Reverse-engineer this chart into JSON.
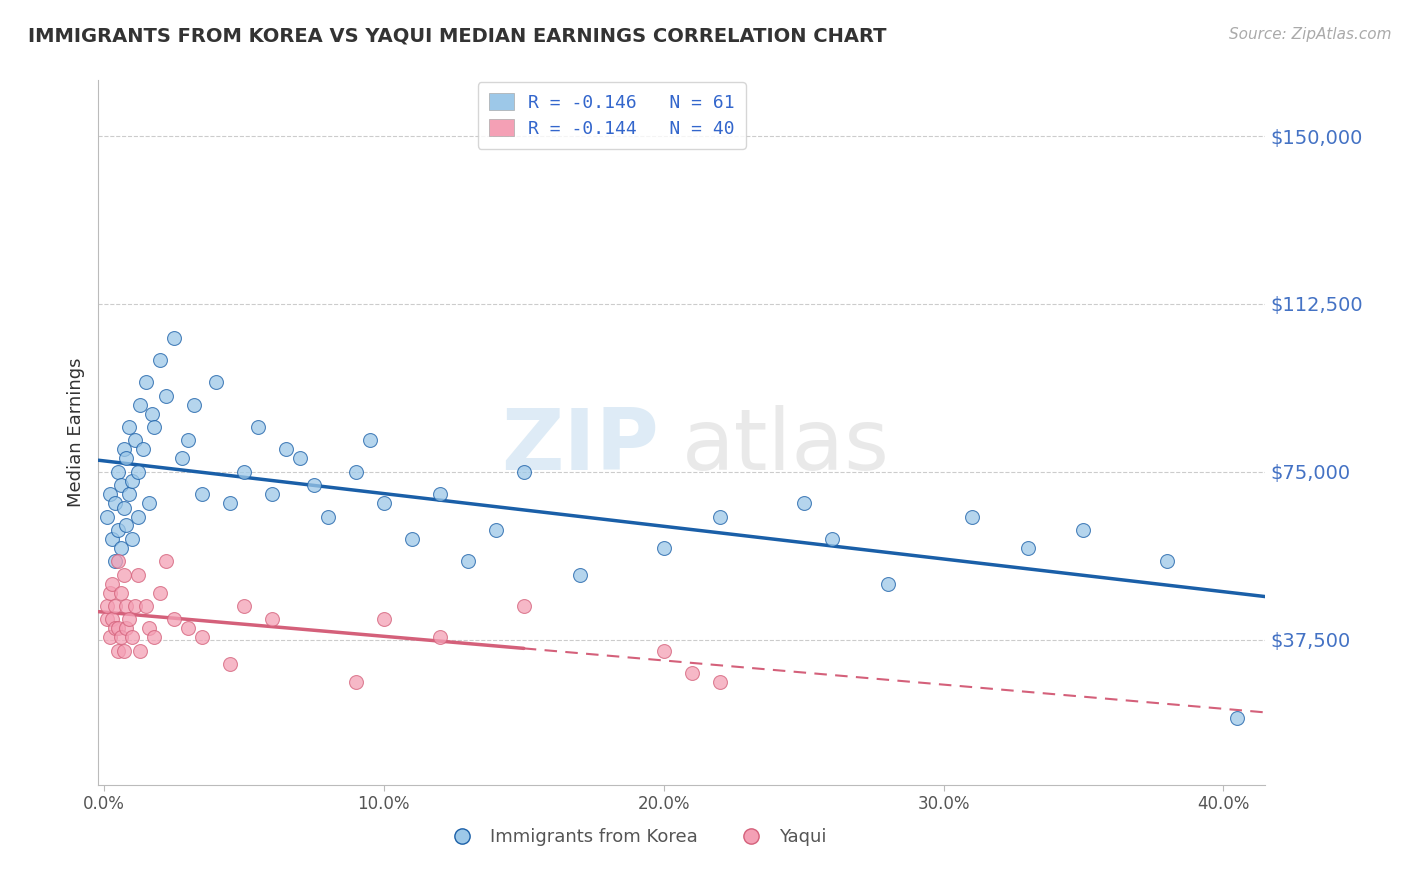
{
  "title": "IMMIGRANTS FROM KOREA VS YAQUI MEDIAN EARNINGS CORRELATION CHART",
  "source_text": "Source: ZipAtlas.com",
  "ylabel": "Median Earnings",
  "ytick_labels": [
    "$37,500",
    "$75,000",
    "$112,500",
    "$150,000"
  ],
  "ytick_values": [
    37500,
    75000,
    112500,
    150000
  ],
  "ymin": 5000,
  "ymax": 162500,
  "xmin": -0.002,
  "xmax": 0.415,
  "xtick_labels": [
    "0.0%",
    "10.0%",
    "20.0%",
    "30.0%",
    "40.0%"
  ],
  "xtick_values": [
    0.0,
    0.1,
    0.2,
    0.3,
    0.4
  ],
  "legend_label1": "Immigrants from Korea",
  "legend_label2": "Yaqui",
  "color_blue": "#9dc8e8",
  "color_pink": "#f4a0b5",
  "color_blue_line": "#1a5fa8",
  "color_pink_line": "#d4607a",
  "watermark_zip": "ZIP",
  "watermark_atlas": "atlas",
  "korea_R": "-0.146",
  "korea_N": "61",
  "yaqui_R": "-0.144",
  "yaqui_N": "40",
  "scatter_korea_x": [
    0.001,
    0.002,
    0.003,
    0.004,
    0.004,
    0.005,
    0.005,
    0.006,
    0.006,
    0.007,
    0.007,
    0.008,
    0.008,
    0.009,
    0.009,
    0.01,
    0.01,
    0.011,
    0.012,
    0.012,
    0.013,
    0.014,
    0.015,
    0.016,
    0.017,
    0.018,
    0.02,
    0.022,
    0.025,
    0.028,
    0.03,
    0.032,
    0.035,
    0.04,
    0.045,
    0.05,
    0.055,
    0.06,
    0.065,
    0.07,
    0.075,
    0.08,
    0.09,
    0.095,
    0.1,
    0.11,
    0.12,
    0.13,
    0.14,
    0.15,
    0.17,
    0.2,
    0.22,
    0.25,
    0.26,
    0.28,
    0.31,
    0.33,
    0.35,
    0.38,
    0.405
  ],
  "scatter_korea_y": [
    65000,
    70000,
    60000,
    68000,
    55000,
    75000,
    62000,
    72000,
    58000,
    80000,
    67000,
    78000,
    63000,
    85000,
    70000,
    73000,
    60000,
    82000,
    75000,
    65000,
    90000,
    80000,
    95000,
    68000,
    88000,
    85000,
    100000,
    92000,
    105000,
    78000,
    82000,
    90000,
    70000,
    95000,
    68000,
    75000,
    85000,
    70000,
    80000,
    78000,
    72000,
    65000,
    75000,
    82000,
    68000,
    60000,
    70000,
    55000,
    62000,
    75000,
    52000,
    58000,
    65000,
    68000,
    60000,
    50000,
    65000,
    58000,
    62000,
    55000,
    20000
  ],
  "scatter_yaqui_x": [
    0.001,
    0.001,
    0.002,
    0.002,
    0.003,
    0.003,
    0.004,
    0.004,
    0.005,
    0.005,
    0.005,
    0.006,
    0.006,
    0.007,
    0.007,
    0.008,
    0.008,
    0.009,
    0.01,
    0.011,
    0.012,
    0.013,
    0.015,
    0.016,
    0.018,
    0.02,
    0.022,
    0.025,
    0.03,
    0.035,
    0.045,
    0.05,
    0.06,
    0.09,
    0.1,
    0.12,
    0.15,
    0.2,
    0.21,
    0.22
  ],
  "scatter_yaqui_y": [
    42000,
    45000,
    48000,
    38000,
    50000,
    42000,
    45000,
    40000,
    55000,
    40000,
    35000,
    48000,
    38000,
    52000,
    35000,
    45000,
    40000,
    42000,
    38000,
    45000,
    52000,
    35000,
    45000,
    40000,
    38000,
    48000,
    55000,
    42000,
    40000,
    38000,
    32000,
    45000,
    42000,
    28000,
    42000,
    38000,
    45000,
    35000,
    30000,
    28000
  ]
}
